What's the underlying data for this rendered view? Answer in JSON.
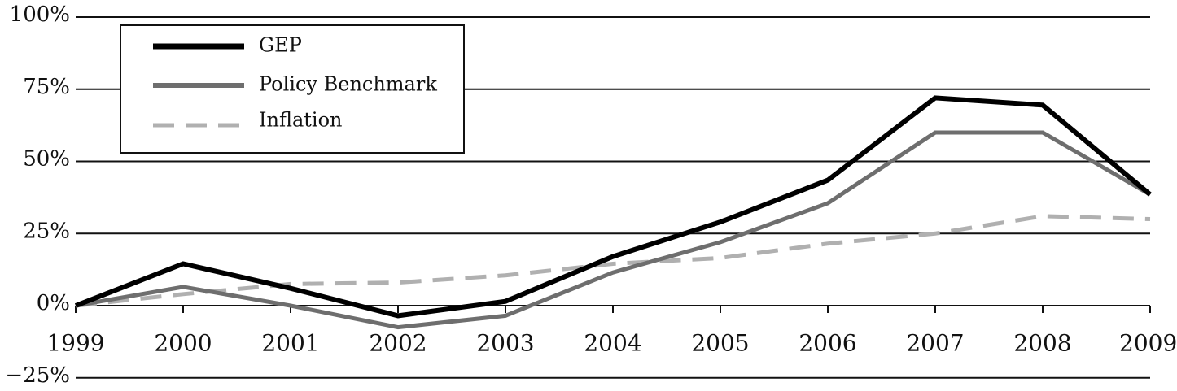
{
  "chart_data": {
    "type": "line",
    "title": "",
    "xlabel": "",
    "ylabel": "",
    "x": [
      "1999",
      "2000",
      "2001",
      "2002",
      "2003",
      "2004",
      "2005",
      "2006",
      "2007",
      "2008",
      "2009"
    ],
    "ylim": [
      -25,
      100
    ],
    "y_ticks": [
      100,
      75,
      50,
      25,
      0,
      -25
    ],
    "y_tick_labels": [
      "100%",
      "75%",
      "50%",
      "25%",
      "0%",
      "−25%"
    ],
    "grid": "horizontal",
    "legend_position": "top-left",
    "series": [
      {
        "name": "GEP",
        "values": [
          0,
          14.5,
          6,
          -3.5,
          1.5,
          17,
          29,
          43.5,
          72,
          69.5,
          38.5
        ],
        "color": "#000000",
        "style": "solid"
      },
      {
        "name": "Policy Benchmark",
        "values": [
          0,
          6.5,
          0,
          -7.5,
          -3.5,
          11.5,
          22,
          35.5,
          60,
          60,
          38.5
        ],
        "color": "#6e6e6e",
        "style": "solid"
      },
      {
        "name": "Inflation",
        "values": [
          0,
          4,
          7.5,
          8,
          10.5,
          14.5,
          16.5,
          21.5,
          25,
          31,
          30
        ],
        "color": "#b0b0b0",
        "style": "dashed"
      }
    ]
  }
}
